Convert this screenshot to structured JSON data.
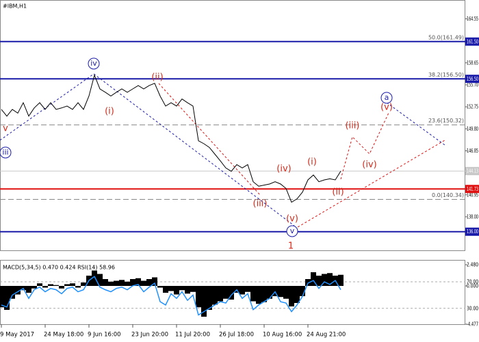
{
  "chart_data": [
    {
      "type": "line",
      "title": "#IBM,H1",
      "categories": [
        "9 May 2017",
        null,
        null,
        null,
        null,
        null,
        null,
        null,
        "24 May 18:00",
        null,
        null,
        null,
        null,
        null,
        null,
        null,
        "9 Jun 16:00",
        null,
        null,
        null,
        null,
        null,
        null,
        null,
        "23 Jun 20:00",
        null,
        null,
        null,
        null,
        null,
        null,
        null,
        "11 Jul 20:00",
        null,
        null,
        null,
        null,
        null,
        null,
        null,
        "26 Jul 18:00",
        null,
        null,
        null,
        null,
        null,
        null,
        null,
        "10 Aug 16:00",
        null,
        null,
        null,
        null,
        null,
        null,
        null,
        "24 Aug 21:00",
        null,
        null,
        null,
        null,
        null,
        null
      ],
      "series": [
        {
          "color": "#000000",
          "values": [
            152.4,
            151.5,
            152.4,
            151.9,
            153.3,
            151.5,
            152.6,
            153.3,
            152.4,
            153.3,
            152.4,
            152.6,
            152.85,
            152.4,
            153.3,
            152.4,
            154.2,
            157.0,
            155.15,
            154.7,
            154.2,
            154.7,
            155.15,
            154.7,
            155.15,
            155.6,
            155.15,
            155.6,
            155.9,
            154.2,
            152.85,
            153.3,
            152.85,
            153.8,
            153.3,
            152.85,
            148.2,
            147.8,
            147.3,
            146.4,
            145.5,
            144.55,
            144.1,
            145.0,
            144.55,
            145.0,
            142.7,
            142.1,
            142.25,
            142.4,
            142.7,
            142.4,
            141.8,
            139.95,
            140.4,
            141.3,
            142.95,
            143.6,
            142.7,
            142.95,
            143.1,
            142.95,
            144.13
          ]
        }
      ],
      "ylim": [
        133.5,
        166.8
      ],
      "yticks": [
        164.55,
        {
          "value": 161.6,
          "label": "161.60"
        },
        158.65,
        {
          "value": 155.7,
          "label": "155.70"
        },
        152.75,
        {
          "value": 149.8,
          "label": "149.80"
        },
        146.85,
        {
          "value": 143.9,
          "label": "143.90"
        },
        140.95,
        {
          "value": 138,
          "label": "138.00"
        }
      ],
      "levels": [
        {
          "value": 161.5,
          "label": "161.50",
          "color": "#1a1aa8"
        },
        {
          "value": 156.5,
          "label": "156.50",
          "color": "#1a1aa8"
        },
        {
          "value": 144.13,
          "label": "144.13",
          "color": "#c8c8c8"
        },
        {
          "value": 141.73,
          "label": "141.73",
          "color": "#e01010"
        },
        {
          "value": 136,
          "label": "136.00",
          "color": "#1a1aa8"
        }
      ],
      "fib_levels": [
        {
          "value": 161.49,
          "label": "50.0(161.49)"
        },
        {
          "value": 156.5,
          "label": "38.2(156.50)"
        },
        {
          "value": 150.32,
          "label": "23.6(150.32)"
        },
        {
          "value": 140.34,
          "label": "0.0(140.34)"
        }
      ],
      "annotations": [
        "iv",
        "(ii)",
        "(i)",
        "v",
        "iii",
        "(iii)",
        "(iv)",
        "(v)",
        "v",
        "1",
        "(i)",
        "(ii)",
        "(iii)",
        "(iv)",
        "(v)",
        "a"
      ]
    },
    {
      "type": "bar",
      "title": "MACD(5,34,5) 0.470 0.424 RSI(14) 58.96",
      "series": [
        {
          "color": "#000000",
          "values": [
            -2.5,
            -2.8,
            -1.5,
            -1.0,
            -0.5,
            -0.8,
            -0.3,
            0.3,
            -0.2,
            0.2,
            0.1,
            -0.3,
            0.2,
            0.3,
            -0.2,
            0.4,
            1.2,
            1.8,
            1.4,
            0.8,
            0.5,
            0.6,
            0.7,
            0.5,
            0.8,
            0.9,
            0.6,
            0.8,
            1.0,
            -0.2,
            -0.8,
            -0.6,
            -1.0,
            -0.5,
            -0.9,
            -0.7,
            -2.5,
            -3.6,
            -2.8,
            -2.2,
            -1.8,
            -1.5,
            -1.6,
            -0.8,
            -1.0,
            -0.7,
            -1.8,
            -2.1,
            -1.9,
            -1.5,
            -1.2,
            -1.3,
            -1.5,
            -2.4,
            -2.0,
            -1.2,
            0.8,
            1.6,
            1.2,
            1.4,
            1.5,
            1.2,
            1.3
          ]
        },
        {
          "type": "line",
          "axis": "y2",
          "color": "#1e90ff",
          "values": [
            35,
            32,
            50,
            55,
            60,
            45,
            58,
            62,
            55,
            60,
            58,
            52,
            60,
            62,
            55,
            58,
            72,
            78,
            62,
            58,
            55,
            60,
            62,
            58,
            64,
            66,
            55,
            62,
            68,
            40,
            35,
            52,
            45,
            55,
            42,
            50,
            20,
            25,
            30,
            35,
            40,
            38,
            50,
            58,
            45,
            52,
            28,
            35,
            40,
            45,
            55,
            40,
            38,
            25,
            35,
            48,
            68,
            72,
            60,
            70,
            66,
            72,
            58
          ]
        }
      ],
      "ylim": [
        -4.48,
        2.96
      ],
      "yticks": [
        {
          "value": 2.48,
          "label": "2.480"
        },
        {
          "value": 0,
          "label": "0.000"
        },
        -4.477
      ],
      "y2lim": [
        6,
        102
      ],
      "y2ticks": [
        {
          "value": 70,
          "label": "70.00"
        },
        {
          "value": 30,
          "label": "30.00"
        }
      ]
    }
  ]
}
